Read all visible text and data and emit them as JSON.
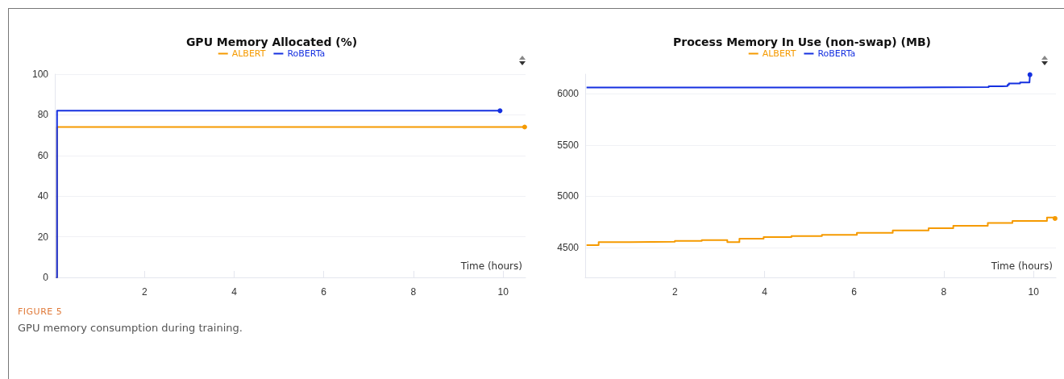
{
  "chart_data": [
    {
      "type": "step",
      "title": "GPU Memory Allocated (%)",
      "xlabel": "Time (hours)",
      "xlim": [
        0,
        10.5
      ],
      "xticks": [
        2,
        4,
        6,
        8,
        10
      ],
      "ylim": [
        0,
        100
      ],
      "yticks": [
        0,
        20,
        40,
        60,
        80,
        100
      ],
      "grid": "y",
      "legend": "top",
      "annotations": [
        "FIGURE 5",
        "GPU memory consumption during training."
      ],
      "series": [
        {
          "name": "ALBERT",
          "color": "#f59a00",
          "x": [
            0.03,
            0.05,
            10.48
          ],
          "values": [
            0,
            74,
            74
          ]
        },
        {
          "name": "RoBERTa",
          "color": "#1530e0",
          "x": [
            0.03,
            0.05,
            9.93
          ],
          "values": [
            0,
            82,
            82
          ]
        }
      ]
    },
    {
      "type": "step",
      "title": "Process Memory In Use (non-swap) (MB)",
      "xlabel": "Time (hours)",
      "xlim": [
        0,
        10.5
      ],
      "xticks": [
        2,
        4,
        6,
        8,
        10
      ],
      "ylim": [
        4210,
        6190
      ],
      "yticks": [
        4500,
        5000,
        5500,
        6000
      ],
      "grid": "y",
      "legend": "top",
      "series": [
        {
          "name": "ALBERT",
          "color": "#f59a00",
          "x": [
            0.03,
            0.3,
            1,
            2,
            2.6,
            3.17,
            3.44,
            3.98,
            4.6,
            5.28,
            6.06,
            6.86,
            7.66,
            8.21,
            8.98,
            9.53,
            10.3,
            10.48
          ],
          "values": [
            4524,
            4554,
            4558,
            4566,
            4574,
            4554,
            4588,
            4603,
            4612,
            4625,
            4645,
            4668,
            4690,
            4712,
            4740,
            4760,
            4793,
            4784
          ]
        },
        {
          "name": "RoBERTa",
          "color": "#1530e0",
          "x": [
            0.03,
            5,
            7,
            9,
            9.3,
            9.42,
            9.45,
            9.68,
            9.7,
            9.91,
            9.92
          ],
          "values": [
            6060,
            6060,
            6065,
            6072,
            6075,
            6085,
            6100,
            6100,
            6110,
            6110,
            6185
          ]
        }
      ]
    }
  ]
}
